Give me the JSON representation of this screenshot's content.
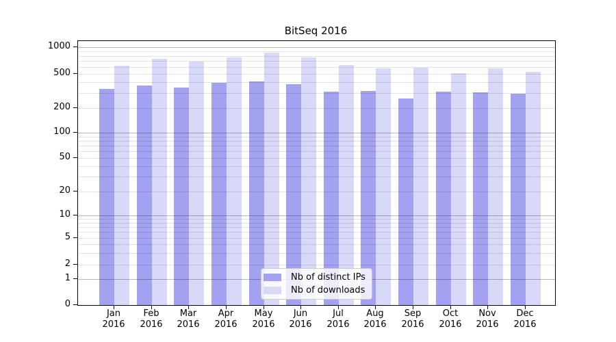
{
  "title": "BitSeq 2016",
  "chart_data": {
    "type": "bar",
    "categories": [
      "Jan",
      "Feb",
      "Mar",
      "Apr",
      "May",
      "Jun",
      "Jul",
      "Aug",
      "Sep",
      "Oct",
      "Nov",
      "Dec"
    ],
    "year_label": "2016",
    "series": [
      {
        "name": "Nb of distinct IPs",
        "color": "#a2a2f0",
        "values": [
          334,
          366,
          348,
          394,
          409,
          380,
          308,
          314,
          260,
          311,
          306,
          293
        ]
      },
      {
        "name": "Nb of downloads",
        "color": "#d8d8f8",
        "values": [
          614,
          741,
          687,
          769,
          861,
          769,
          626,
          581,
          590,
          509,
          578,
          529
        ]
      }
    ],
    "yticks": [
      0,
      1,
      2,
      5,
      10,
      20,
      50,
      100,
      200,
      500,
      1000
    ],
    "yscale": "symlog",
    "ylim": [
      0,
      1250
    ],
    "grid": "both",
    "legend_position": "lower center"
  }
}
